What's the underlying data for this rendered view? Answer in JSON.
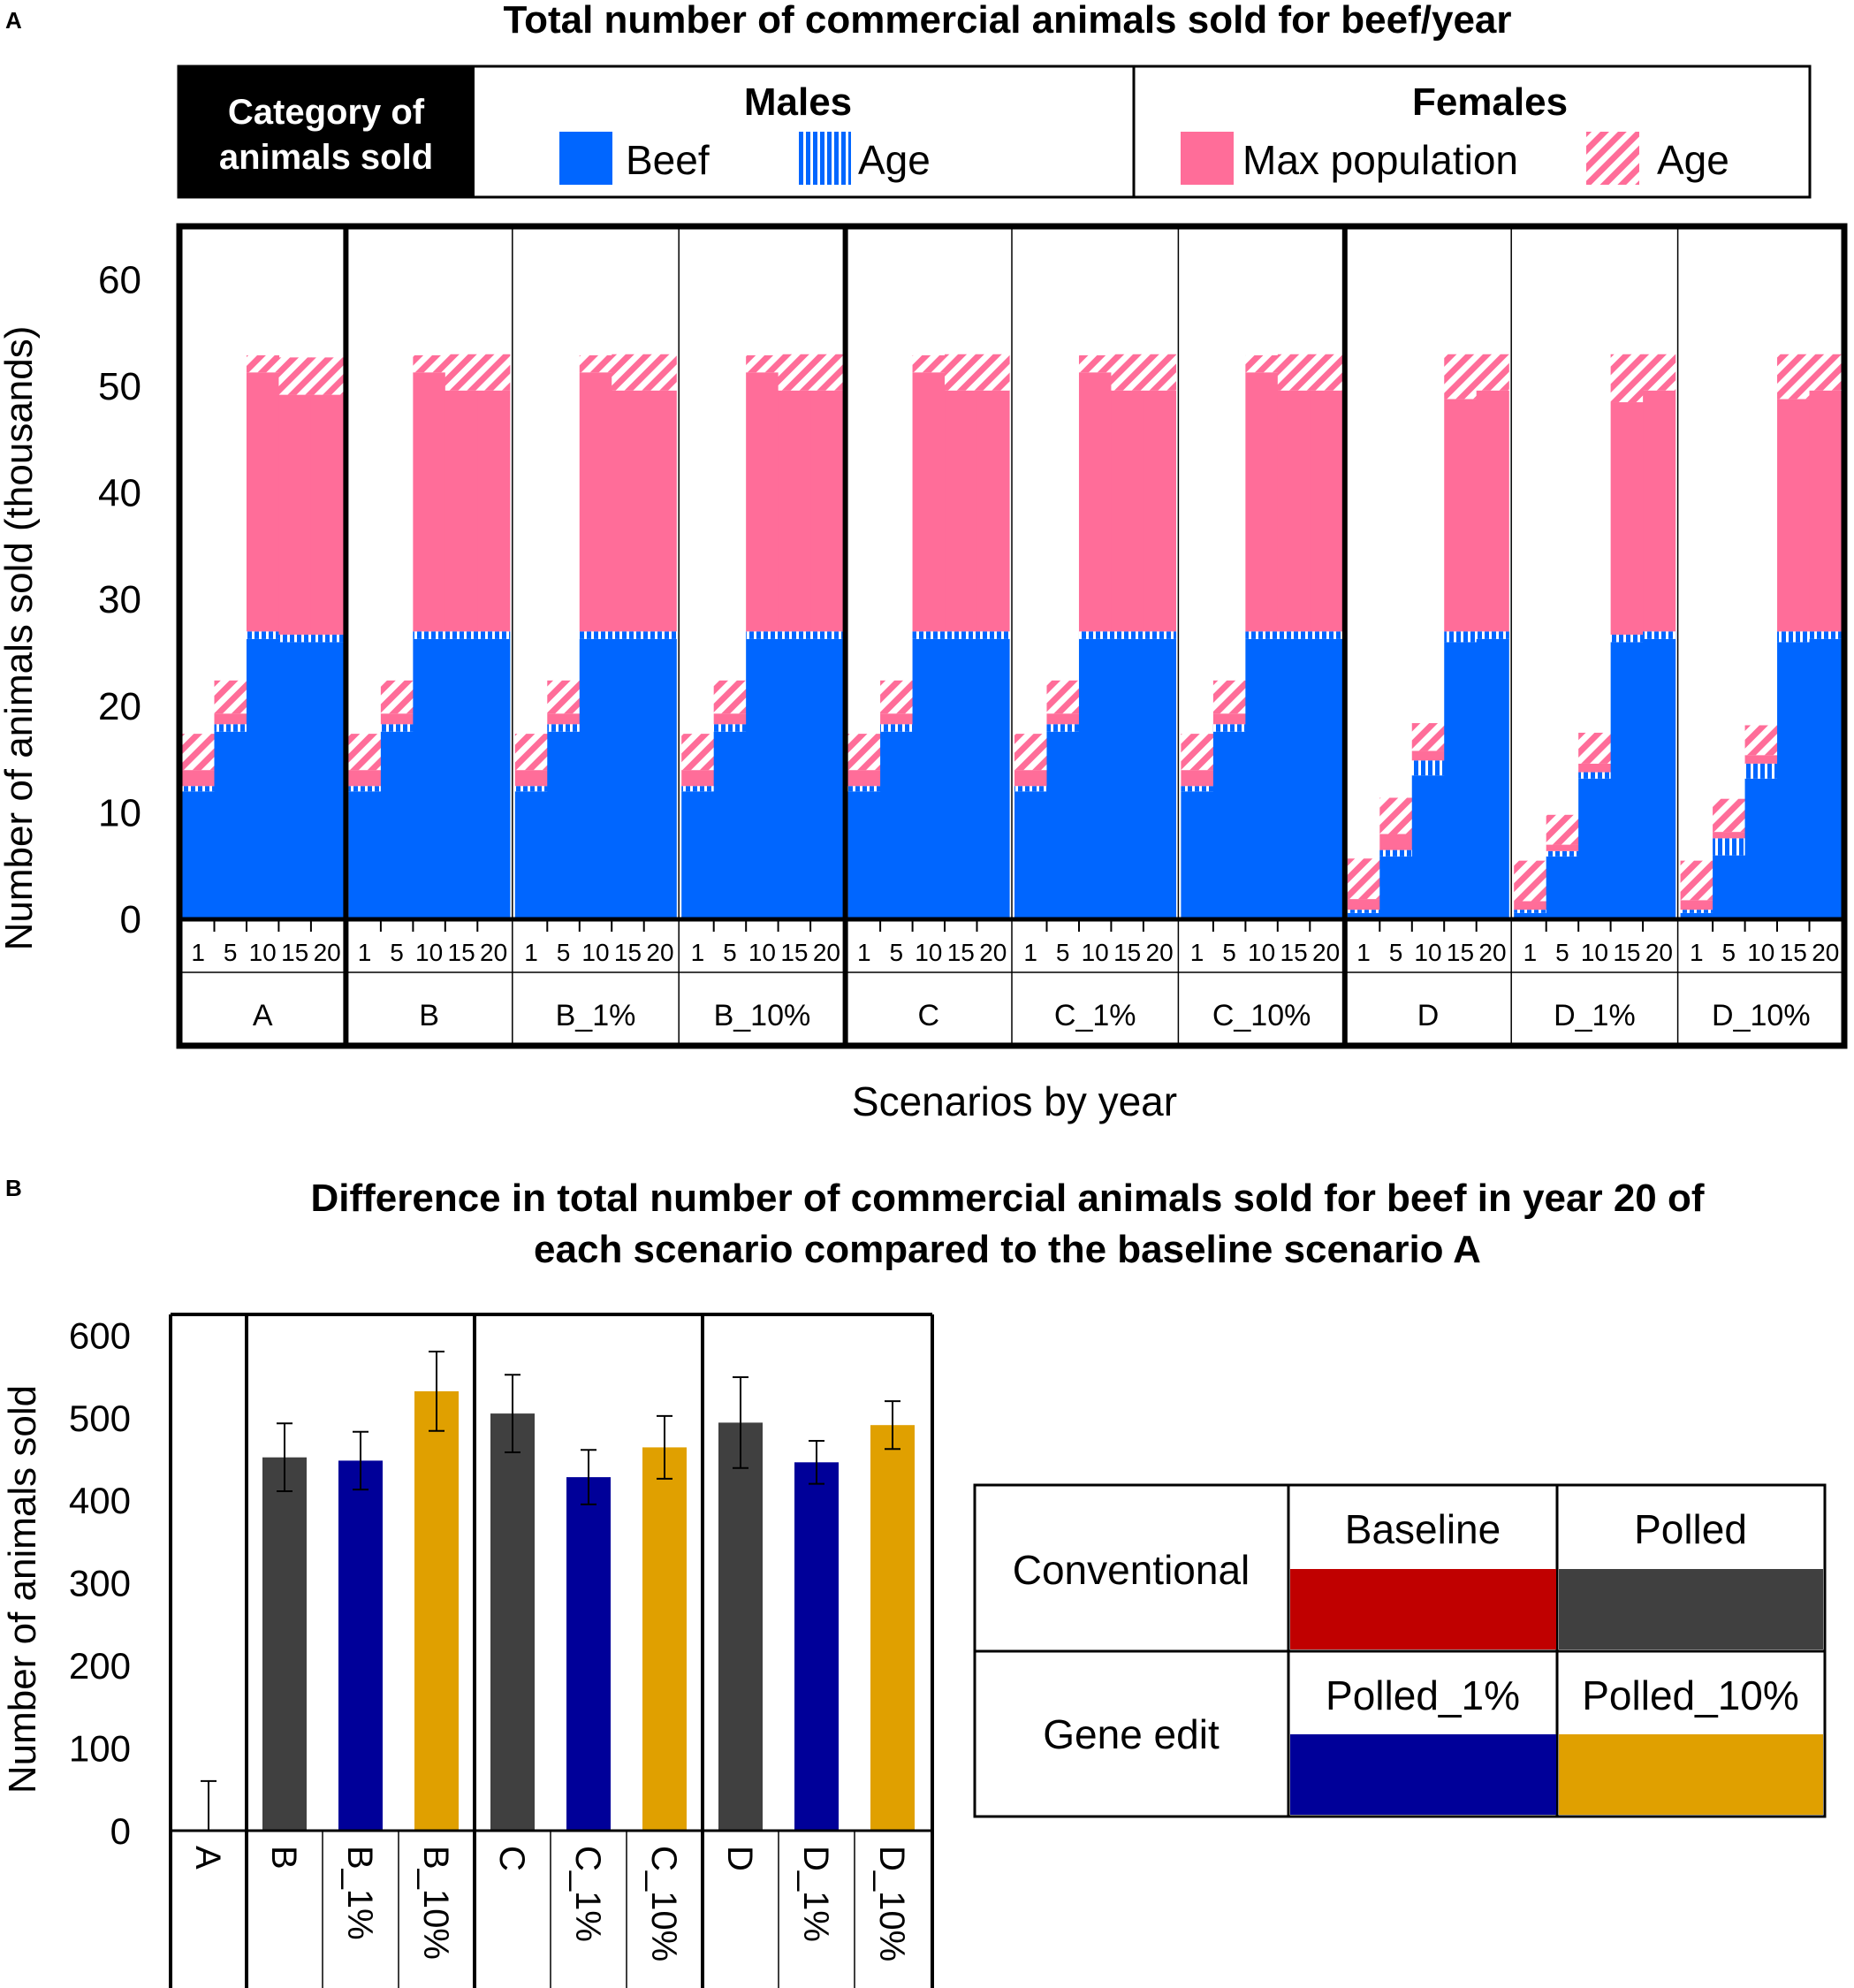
{
  "colors": {
    "beef_blue": "#0066ff",
    "female_pink": "#ff6d99",
    "polled_gray": "#404040",
    "baseline_red": "#c00000",
    "polled1_navy": "#000099",
    "polled10_gold": "#e0a000",
    "header_black": "#000000"
  },
  "panel_labels": {
    "a": "A",
    "b": "B"
  },
  "chart_data": [
    {
      "type": "bar",
      "stacked": true,
      "title": "Total number of commercial animals sold for beef/year",
      "xlabel": "Scenarios by year",
      "ylabel": "Number of animals sold (thousands)",
      "ylim": [
        0,
        65
      ],
      "yticks": [
        0,
        10,
        20,
        30,
        40,
        50,
        60
      ],
      "year_ticks": [
        "1",
        "5",
        "10",
        "15",
        "20"
      ],
      "header": {
        "category_label_line1": "Category of",
        "category_label_line2": "animals sold",
        "males_title": "Males",
        "females_title": "Females",
        "legend": {
          "male_beef": "Beef",
          "male_age": "Age",
          "female_max": "Max population",
          "female_age": "Age"
        }
      },
      "series_order": [
        "male_beef",
        "male_age",
        "female_max",
        "female_age"
      ],
      "scenarios": [
        {
          "name": "A",
          "years": [
            1,
            5,
            10,
            15,
            20
          ],
          "male_beef": [
            12.0,
            17.6,
            26.3,
            26.0,
            26.0
          ],
          "male_age": [
            0.5,
            0.7,
            0.7,
            0.7,
            0.7
          ],
          "female_max": [
            1.5,
            1.0,
            24.3,
            22.5,
            22.5
          ],
          "female_age": [
            3.4,
            3.1,
            1.6,
            3.5,
            3.5
          ]
        },
        {
          "name": "B",
          "years": [
            1,
            5,
            10,
            15,
            20
          ],
          "male_beef": [
            12.0,
            17.6,
            26.3,
            26.3,
            26.3
          ],
          "male_age": [
            0.5,
            0.7,
            0.7,
            0.7,
            0.7
          ],
          "female_max": [
            1.5,
            1.0,
            24.3,
            22.6,
            22.6
          ],
          "female_age": [
            3.4,
            3.1,
            1.6,
            3.4,
            3.4
          ]
        },
        {
          "name": "B_1%",
          "years": [
            1,
            5,
            10,
            15,
            20
          ],
          "male_beef": [
            12.0,
            17.6,
            26.3,
            26.3,
            26.3
          ],
          "male_age": [
            0.5,
            0.7,
            0.7,
            0.7,
            0.7
          ],
          "female_max": [
            1.5,
            1.0,
            24.3,
            22.6,
            22.6
          ],
          "female_age": [
            3.4,
            3.1,
            1.6,
            3.4,
            3.4
          ]
        },
        {
          "name": "B_10%",
          "years": [
            1,
            5,
            10,
            15,
            20
          ],
          "male_beef": [
            12.0,
            17.6,
            26.3,
            26.3,
            26.3
          ],
          "male_age": [
            0.5,
            0.7,
            0.7,
            0.7,
            0.7
          ],
          "female_max": [
            1.5,
            1.0,
            24.3,
            22.6,
            22.6
          ],
          "female_age": [
            3.4,
            3.1,
            1.6,
            3.4,
            3.4
          ]
        },
        {
          "name": "C",
          "years": [
            1,
            5,
            10,
            15,
            20
          ],
          "male_beef": [
            12.0,
            17.6,
            26.3,
            26.3,
            26.3
          ],
          "male_age": [
            0.5,
            0.7,
            0.7,
            0.7,
            0.7
          ],
          "female_max": [
            1.5,
            1.0,
            24.3,
            22.6,
            22.6
          ],
          "female_age": [
            3.4,
            3.1,
            1.6,
            3.4,
            3.4
          ]
        },
        {
          "name": "C_1%",
          "years": [
            1,
            5,
            10,
            15,
            20
          ],
          "male_beef": [
            12.0,
            17.6,
            26.3,
            26.3,
            26.3
          ],
          "male_age": [
            0.5,
            0.7,
            0.7,
            0.7,
            0.7
          ],
          "female_max": [
            1.5,
            1.0,
            24.3,
            22.6,
            22.6
          ],
          "female_age": [
            3.4,
            3.1,
            1.6,
            3.4,
            3.4
          ]
        },
        {
          "name": "C_10%",
          "years": [
            1,
            5,
            10,
            15,
            20
          ],
          "male_beef": [
            12.0,
            17.6,
            26.3,
            26.3,
            26.3
          ],
          "male_age": [
            0.5,
            0.7,
            0.7,
            0.7,
            0.7
          ],
          "female_max": [
            1.5,
            1.0,
            24.3,
            22.6,
            22.6
          ],
          "female_age": [
            3.4,
            3.1,
            1.6,
            3.4,
            3.4
          ]
        },
        {
          "name": "D",
          "years": [
            1,
            5,
            10,
            15,
            20
          ],
          "male_beef": [
            0.6,
            5.9,
            13.5,
            26.0,
            26.3
          ],
          "male_age": [
            0.3,
            0.6,
            1.4,
            1.0,
            0.7
          ],
          "female_max": [
            1.0,
            1.5,
            0.9,
            21.8,
            22.6
          ],
          "female_age": [
            3.8,
            3.4,
            2.6,
            4.2,
            3.4
          ]
        },
        {
          "name": "D_1%",
          "years": [
            1,
            5,
            10,
            15,
            20
          ],
          "male_beef": [
            0.6,
            5.9,
            13.2,
            26.0,
            26.3
          ],
          "male_age": [
            0.3,
            0.5,
            0.6,
            0.7,
            0.7
          ],
          "female_max": [
            0.8,
            0.6,
            0.8,
            21.8,
            22.6
          ],
          "female_age": [
            3.8,
            2.8,
            2.9,
            4.5,
            3.4
          ]
        },
        {
          "name": "D_10%",
          "years": [
            1,
            5,
            10,
            15,
            20
          ],
          "male_beef": [
            0.6,
            6.0,
            13.2,
            26.0,
            26.3
          ],
          "male_age": [
            0.3,
            1.6,
            1.4,
            1.0,
            0.7
          ],
          "female_max": [
            0.9,
            0.6,
            0.8,
            21.8,
            22.6
          ],
          "female_age": [
            3.7,
            3.1,
            2.8,
            4.2,
            3.4
          ]
        }
      ],
      "group_separators_after": [
        "A",
        "B_10%",
        "C_10%"
      ]
    },
    {
      "type": "bar",
      "title_line1": "Difference in total number of commercial animals sold for beef in year 20 of",
      "title_line2": "each scenario compared to the baseline scenario A",
      "xlabel": "",
      "ylabel": "Number of animals sold",
      "ylim": [
        0,
        600
      ],
      "yticks": [
        0,
        100,
        200,
        300,
        400,
        500,
        600
      ],
      "categories": [
        "A",
        "B",
        "B_1%",
        "B_10%",
        "C",
        "C_1%",
        "C_10%",
        "D",
        "D_1%",
        "D_10%"
      ],
      "values": [
        0,
        452,
        448,
        532,
        505,
        428,
        464,
        494,
        446,
        491
      ],
      "error": [
        60,
        41,
        35,
        48,
        47,
        33,
        38,
        55,
        26,
        29
      ],
      "bar_color_keys": [
        "baseline",
        "polled",
        "polled_1",
        "polled_10",
        "polled",
        "polled_1",
        "polled_10",
        "polled",
        "polled_1",
        "polled_10"
      ],
      "group_separators_after": [
        "A",
        "B_10%",
        "C_10%"
      ],
      "legend_table": {
        "row1_label": "Conventional",
        "row2_label": "Gene edit",
        "baseline": "Baseline",
        "polled": "Polled",
        "polled_1": "Polled_1%",
        "polled_10": "Polled_10%"
      }
    }
  ]
}
